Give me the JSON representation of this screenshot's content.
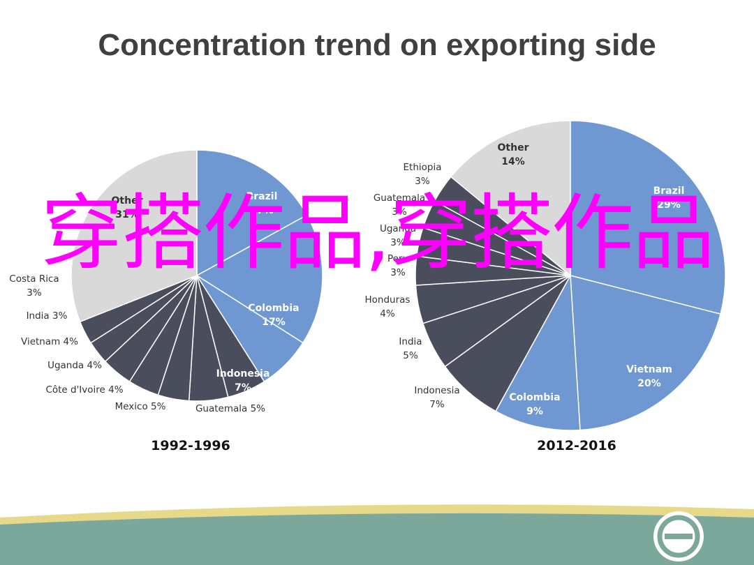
{
  "slide": {
    "title": "Concentration trend on exporting side",
    "watermark": "穿搭作品,穿搭作品"
  },
  "colors": {
    "brazil": "#6f97d2",
    "colombia": "#6f97d2",
    "indonesia": "#6f97d2",
    "vietnam": "#6f97d2",
    "dark": "#4a4d5c",
    "other": "#d9d9d9",
    "divider": "#ffffff",
    "watermark": "#ff00ff",
    "footer_green": "#7ca89c",
    "footer_yellow": "#e7d98a"
  },
  "icons": [
    "logo-icon"
  ],
  "chart_data": [
    {
      "type": "pie",
      "title": "1992-1996",
      "slices": [
        {
          "label": "Brazil",
          "pct_label": "17%",
          "value": 17,
          "style": "blue"
        },
        {
          "label": "Colombia",
          "pct_label": "17%",
          "value": 17,
          "style": "blue"
        },
        {
          "label": "Indonesia",
          "pct_label": "7%",
          "value": 7,
          "style": "blue"
        },
        {
          "label": "Guatemala",
          "pct_label": "5%",
          "value": 5,
          "style": "dark"
        },
        {
          "label": "Mexico",
          "pct_label": "5%",
          "value": 5,
          "style": "dark"
        },
        {
          "label": "Côte d'Ivoire",
          "pct_label": "4%",
          "value": 4,
          "style": "dark"
        },
        {
          "label": "Uganda",
          "pct_label": "4%",
          "value": 4,
          "style": "dark"
        },
        {
          "label": "Vietnam",
          "pct_label": "4%",
          "value": 4,
          "style": "dark"
        },
        {
          "label": "India",
          "pct_label": "3%",
          "value": 3,
          "style": "dark"
        },
        {
          "label": "Costa Rica",
          "pct_label": "3%",
          "value": 3,
          "style": "dark"
        },
        {
          "label": "Other",
          "pct_label": "31%",
          "value": 31,
          "style": "other"
        }
      ]
    },
    {
      "type": "pie",
      "title": "2012-2016",
      "slices": [
        {
          "label": "Brazil",
          "pct_label": "29%",
          "value": 29,
          "style": "blue"
        },
        {
          "label": "Vietnam",
          "pct_label": "20%",
          "value": 20,
          "style": "blue"
        },
        {
          "label": "Colombia",
          "pct_label": "9%",
          "value": 9,
          "style": "blue"
        },
        {
          "label": "Indonesia",
          "pct_label": "7%",
          "value": 7,
          "style": "dark"
        },
        {
          "label": "India",
          "pct_label": "5%",
          "value": 5,
          "style": "dark"
        },
        {
          "label": "Honduras",
          "pct_label": "4%",
          "value": 4,
          "style": "dark"
        },
        {
          "label": "Peru",
          "pct_label": "3%",
          "value": 3,
          "style": "dark"
        },
        {
          "label": "Uganda",
          "pct_label": "3%",
          "value": 3,
          "style": "dark"
        },
        {
          "label": "Guatemala",
          "pct_label": "3%",
          "value": 3,
          "style": "dark"
        },
        {
          "label": "Ethiopia",
          "pct_label": "3%",
          "value": 3,
          "style": "dark"
        },
        {
          "label": "Other",
          "pct_label": "14%",
          "value": 14,
          "style": "other"
        }
      ]
    }
  ]
}
